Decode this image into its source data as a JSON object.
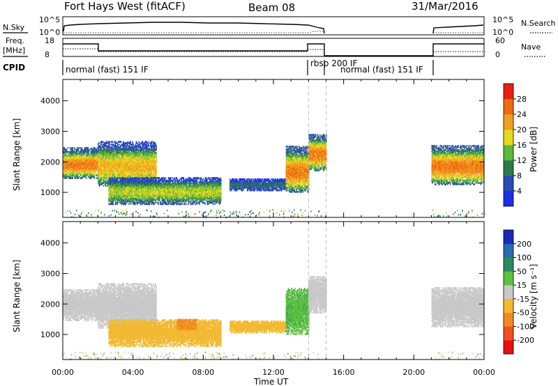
{
  "header": {
    "station": "Fort Hays West (fitACF)",
    "beam": "Beam 08",
    "date": "31/Mar/2016"
  },
  "labels": {
    "nsky": "N.Sky",
    "nsearch": "N.Search",
    "freq": "Freq.",
    "mhz": "[MHz]",
    "nave": "Nave",
    "cpid": "CPID",
    "slant_range": "Slant Range [km]",
    "time_ut": "Time UT",
    "power": "Power [dB]",
    "velocity": "Velocity [m s⁻¹]"
  },
  "top_panels": {
    "noise_left_ticks": [
      "10^5",
      "10^0"
    ],
    "noise_right_ticks": [
      "10^5",
      "10^0"
    ],
    "freq_left_ticks": [
      "18",
      "8"
    ],
    "freq_right_ticks": [
      "60",
      "0"
    ]
  },
  "cpid_segments": [
    {
      "label": "normal (fast) 151 IF",
      "start_h": 0.0,
      "end_h": 14.0
    },
    {
      "label": "rbsp  200 IF",
      "start_h": 14.0,
      "end_h": 15.0
    },
    {
      "label": "normal (fast) 151 IF",
      "start_h": 15.0,
      "end_h": 21.0
    }
  ],
  "chart_data": [
    {
      "type": "heatmap",
      "title": "Power",
      "xlabel": "Time UT",
      "ylabel": "Slant Range [km]",
      "xlim_hours": [
        0,
        24
      ],
      "ylim_km": [
        180,
        4700
      ],
      "x_ticks": [
        "00:00",
        "04:00",
        "08:00",
        "12:00",
        "16:00",
        "20:00",
        "00:00"
      ],
      "y_ticks": [
        1000,
        2000,
        3000,
        4000
      ],
      "colorbar": {
        "label": "Power [dB]",
        "ticks": [
          4,
          8,
          12,
          16,
          20,
          24,
          28
        ],
        "colors": [
          "#1a2ee6",
          "#284cb4",
          "#2e7a4a",
          "#5fb83a",
          "#e8d820",
          "#f0a020",
          "#ef6a10",
          "#e82010"
        ]
      },
      "echo_regions": [
        {
          "t0": 0.0,
          "t1": 2.0,
          "r0": 1450,
          "r1": 2450,
          "peak_power_db": 28
        },
        {
          "t0": 2.0,
          "t1": 5.3,
          "r0": 1200,
          "r1": 2650,
          "peak_power_db": 24
        },
        {
          "t0": 2.6,
          "t1": 9.0,
          "r0": 600,
          "r1": 1500,
          "peak_power_db": 20
        },
        {
          "t0": 9.5,
          "t1": 12.7,
          "r0": 1050,
          "r1": 1450,
          "peak_power_db": 12
        },
        {
          "t0": 12.7,
          "t1": 14.0,
          "r0": 1000,
          "r1": 2500,
          "peak_power_db": 28
        },
        {
          "t0": 14.0,
          "t1": 15.0,
          "r0": 1700,
          "r1": 2900,
          "peak_power_db": 28
        },
        {
          "t0": 21.0,
          "t1": 24.0,
          "r0": 1250,
          "r1": 2550,
          "peak_power_db": 28
        }
      ],
      "marker_lines_hours": [
        14.0,
        15.0
      ]
    },
    {
      "type": "heatmap",
      "title": "Velocity",
      "xlabel": "Time UT",
      "ylabel": "Slant Range [km]",
      "xlim_hours": [
        0,
        24
      ],
      "ylim_km": [
        180,
        4700
      ],
      "x_ticks": [
        "00:00",
        "04:00",
        "08:00",
        "12:00",
        "16:00",
        "20:00",
        "00:00"
      ],
      "y_ticks": [
        1000,
        2000,
        3000,
        4000
      ],
      "colorbar": {
        "label": "Velocity [m s⁻¹]",
        "ticks": [
          -200,
          -100,
          -50,
          -15,
          15,
          50,
          100,
          200
        ],
        "colors": [
          "#e81010",
          "#f05020",
          "#f08a20",
          "#f2b830",
          "#c8c8c8",
          "#5cc040",
          "#2a8a60",
          "#2a6ab0",
          "#1a2ab8"
        ]
      },
      "echo_regions": [
        {
          "t0": 0.0,
          "t1": 2.0,
          "r0": 1450,
          "r1": 2450,
          "velocity": 0
        },
        {
          "t0": 2.0,
          "t1": 5.3,
          "r0": 1200,
          "r1": 2650,
          "velocity": 0
        },
        {
          "t0": 2.6,
          "t1": 9.0,
          "r0": 600,
          "r1": 1500,
          "velocity": -30
        },
        {
          "t0": 6.5,
          "t1": 7.6,
          "r0": 1150,
          "r1": 1500,
          "velocity": -60
        },
        {
          "t0": 9.5,
          "t1": 12.7,
          "r0": 1050,
          "r1": 1450,
          "velocity": -30
        },
        {
          "t0": 12.7,
          "t1": 14.0,
          "r0": 1000,
          "r1": 2500,
          "velocity": 40
        },
        {
          "t0": 14.0,
          "t1": 15.0,
          "r0": 1700,
          "r1": 2900,
          "velocity": 0
        },
        {
          "t0": 21.0,
          "t1": 24.0,
          "r0": 1250,
          "r1": 2550,
          "velocity": 0
        }
      ],
      "marker_lines_hours": [
        14.0,
        15.0
      ]
    }
  ]
}
